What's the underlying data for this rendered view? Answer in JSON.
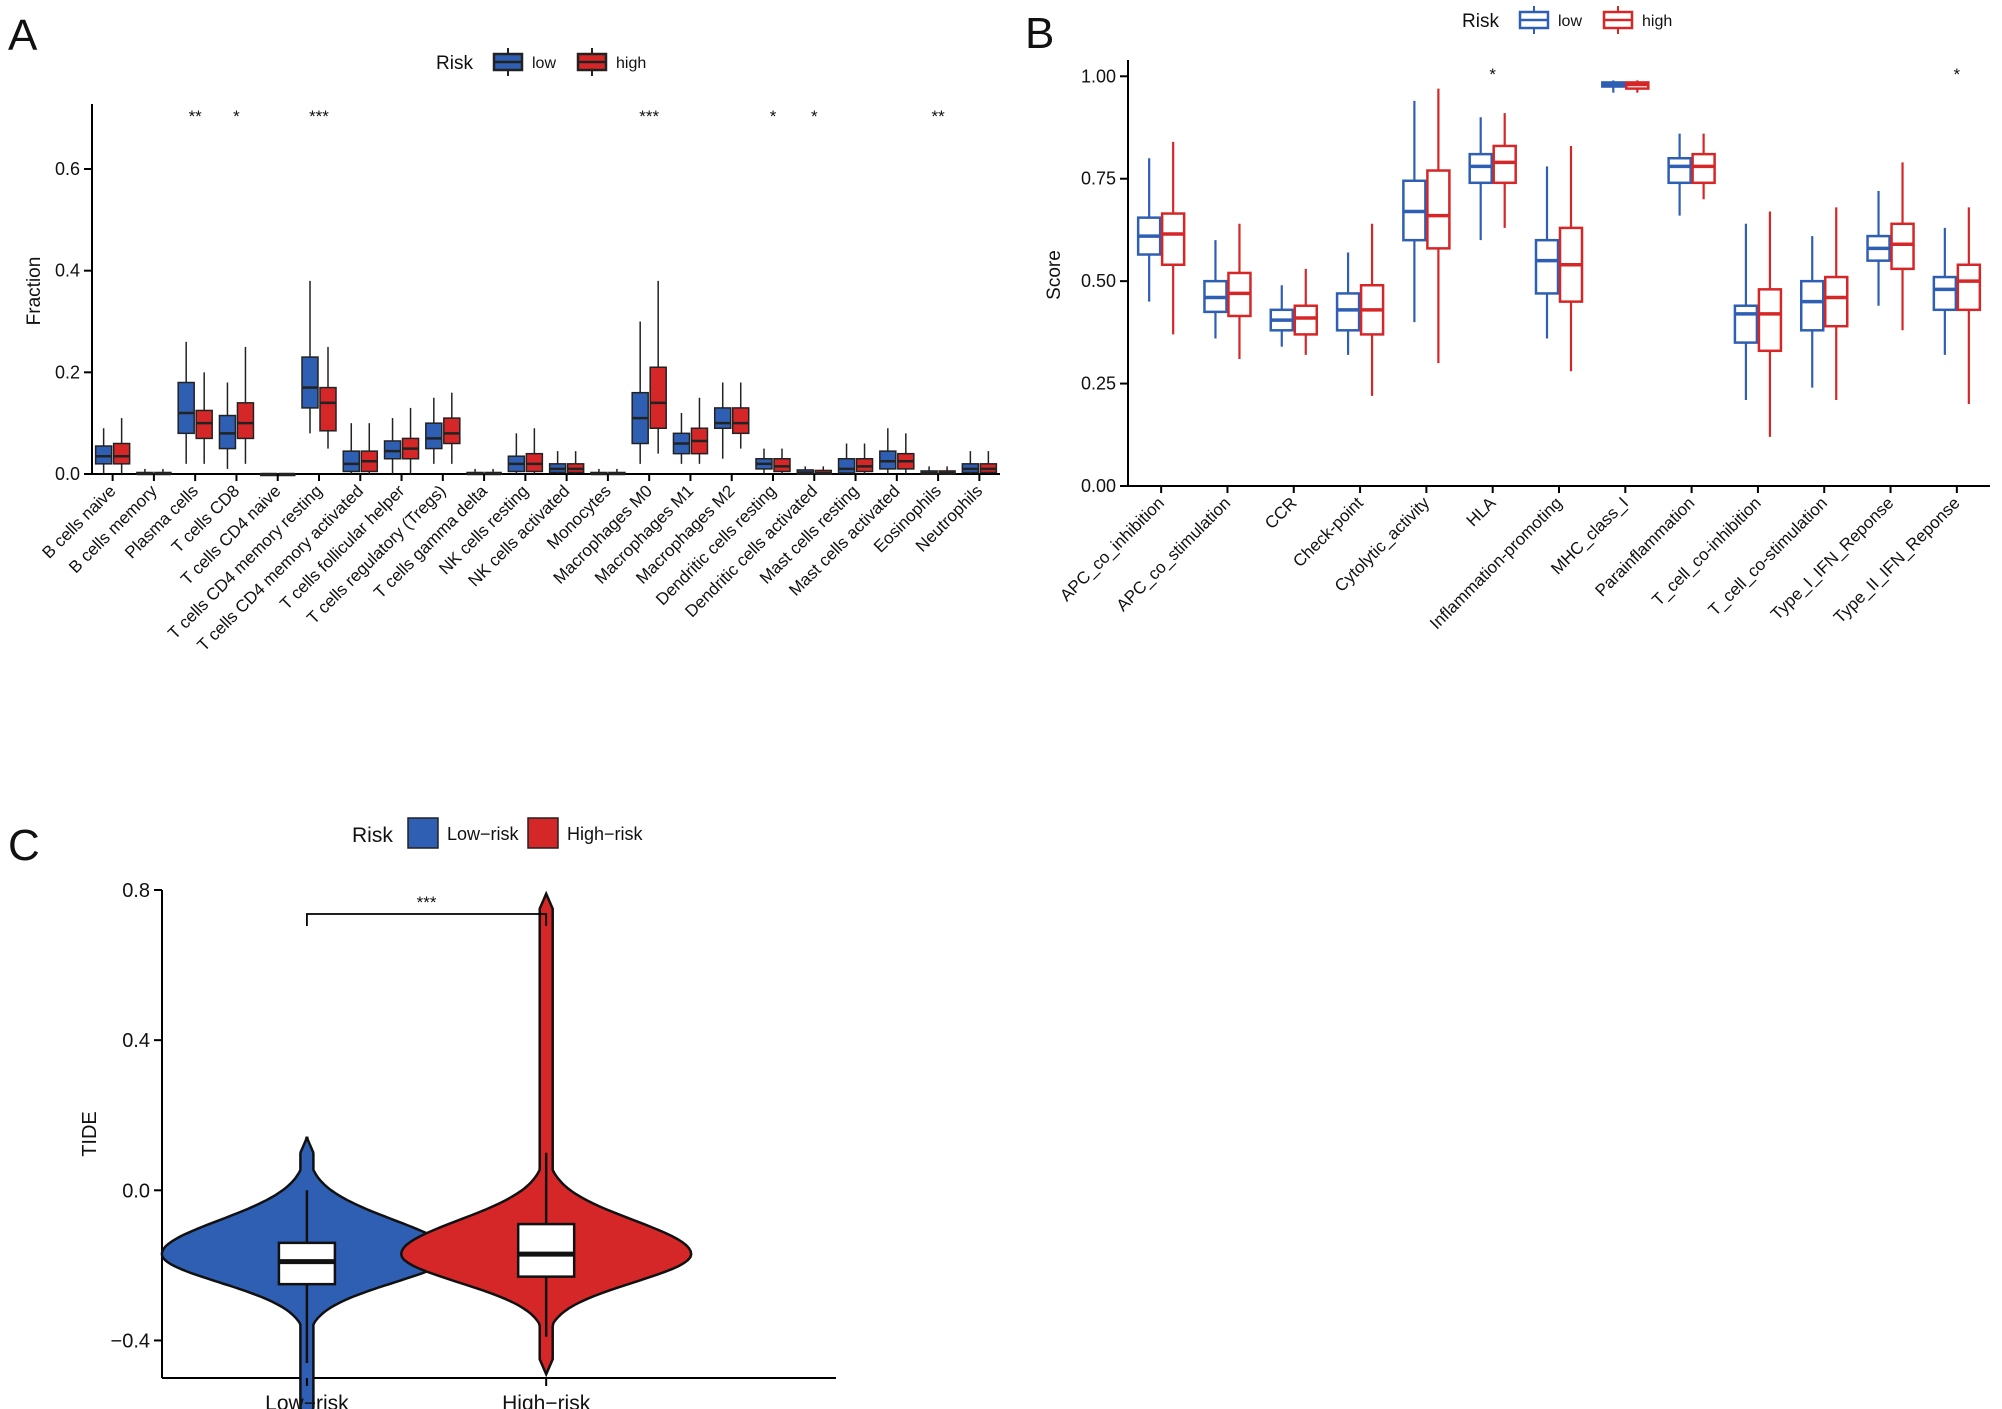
{
  "colors": {
    "low": "#2f5fb3",
    "high": "#d62728",
    "axis": "#000000",
    "outlier": "#000000"
  },
  "panel_labels": {
    "a": "A",
    "b": "B",
    "c": "C"
  },
  "chart_data": [
    {
      "panel": "A",
      "type": "box",
      "ylabel": "Fraction",
      "ylim": [
        0,
        0.72
      ],
      "yticks": [
        0,
        0.2,
        0.4,
        0.6
      ],
      "ytick_labels": [
        "0.0",
        "0.2",
        "0.4",
        "0.6"
      ],
      "legend": {
        "title": "Risk",
        "entries": [
          "low",
          "high"
        ],
        "position": "top"
      },
      "categories": [
        "B cells naive",
        "B cells memory",
        "Plasma cells",
        "T cells CD8",
        "T cells CD4 naive",
        "T cells CD4 memory resting",
        "T cells CD4 memory activated",
        "T cells follicular helper",
        "T cells regulatory (Tregs)",
        "T cells gamma delta",
        "NK cells resting",
        "NK cells activated",
        "Monocytes",
        "Macrophages M0",
        "Macrophages M1",
        "Macrophages M2",
        "Dendritic cells resting",
        "Dendritic cells activated",
        "Mast cells resting",
        "Mast cells activated",
        "Eosinophils",
        "Neutrophils"
      ],
      "significance": [
        "",
        "",
        "**",
        "*",
        "",
        "***",
        "",
        "",
        "",
        "",
        "",
        "",
        "",
        "***",
        "",
        "",
        "*",
        "*",
        "",
        "",
        "**",
        ""
      ],
      "series": [
        {
          "name": "low",
          "boxes": [
            [
              0,
              0.02,
              0.035,
              0.055,
              0.09
            ],
            [
              0,
              0,
              0,
              0.003,
              0.01
            ],
            [
              0.02,
              0.08,
              0.12,
              0.18,
              0.26
            ],
            [
              0.01,
              0.05,
              0.08,
              0.115,
              0.18
            ],
            [
              0,
              0,
              0,
              0,
              0
            ],
            [
              0.08,
              0.13,
              0.17,
              0.23,
              0.38
            ],
            [
              0,
              0.005,
              0.02,
              0.045,
              0.1
            ],
            [
              0,
              0.03,
              0.045,
              0.065,
              0.11
            ],
            [
              0.02,
              0.05,
              0.07,
              0.1,
              0.15
            ],
            [
              0,
              0,
              0,
              0.003,
              0.01
            ],
            [
              0,
              0.005,
              0.02,
              0.035,
              0.08
            ],
            [
              0,
              0.003,
              0.01,
              0.02,
              0.045
            ],
            [
              0,
              0,
              0,
              0.003,
              0.01
            ],
            [
              0.02,
              0.06,
              0.11,
              0.16,
              0.3
            ],
            [
              0.02,
              0.04,
              0.06,
              0.08,
              0.12
            ],
            [
              0.03,
              0.09,
              0.1,
              0.13,
              0.18
            ],
            [
              0,
              0.01,
              0.02,
              0.03,
              0.05
            ],
            [
              0,
              0,
              0.003,
              0.008,
              0.015
            ],
            [
              0,
              0.002,
              0.01,
              0.03,
              0.06
            ],
            [
              0,
              0.01,
              0.025,
              0.045,
              0.09
            ],
            [
              0,
              0,
              0.002,
              0.006,
              0.015
            ],
            [
              0,
              0.003,
              0.01,
              0.02,
              0.045
            ]
          ]
        },
        {
          "name": "high",
          "boxes": [
            [
              0,
              0.02,
              0.035,
              0.06,
              0.11
            ],
            [
              0,
              0,
              0,
              0.003,
              0.01
            ],
            [
              0.02,
              0.07,
              0.1,
              0.125,
              0.2
            ],
            [
              0.02,
              0.07,
              0.1,
              0.14,
              0.25
            ],
            [
              0,
              0,
              0,
              0,
              0
            ],
            [
              0.05,
              0.085,
              0.14,
              0.17,
              0.25
            ],
            [
              0,
              0.005,
              0.025,
              0.045,
              0.1
            ],
            [
              0,
              0.03,
              0.05,
              0.07,
              0.13
            ],
            [
              0.02,
              0.06,
              0.08,
              0.11,
              0.16
            ],
            [
              0,
              0,
              0,
              0.003,
              0.01
            ],
            [
              0,
              0.005,
              0.02,
              0.04,
              0.09
            ],
            [
              0,
              0.003,
              0.01,
              0.02,
              0.045
            ],
            [
              0,
              0,
              0,
              0.003,
              0.01
            ],
            [
              0.04,
              0.09,
              0.14,
              0.21,
              0.38
            ],
            [
              0.02,
              0.04,
              0.065,
              0.09,
              0.15
            ],
            [
              0.05,
              0.08,
              0.1,
              0.13,
              0.18
            ],
            [
              0,
              0.005,
              0.015,
              0.03,
              0.05
            ],
            [
              0,
              0,
              0.002,
              0.007,
              0.015
            ],
            [
              0,
              0.005,
              0.015,
              0.03,
              0.06
            ],
            [
              0,
              0.01,
              0.025,
              0.04,
              0.08
            ],
            [
              0,
              0,
              0.002,
              0.006,
              0.015
            ],
            [
              0,
              0.003,
              0.01,
              0.02,
              0.045
            ]
          ]
        }
      ]
    },
    {
      "panel": "B",
      "type": "box",
      "ylabel": "Score",
      "ylim": [
        0,
        1.03
      ],
      "yticks": [
        0,
        0.25,
        0.5,
        0.75,
        1.0
      ],
      "ytick_labels": [
        "0.00",
        "0.25",
        "0.50",
        "0.75",
        "1.00"
      ],
      "legend": {
        "title": "Risk",
        "entries": [
          "low",
          "high"
        ],
        "position": "top"
      },
      "categories": [
        "APC_co_inhibition",
        "APC_co_stimulation",
        "CCR",
        "Check-point",
        "Cytolytic_activity",
        "HLA",
        "Inflammation-promoting",
        "MHC_class_I",
        "Parainflammation",
        "T_cell_co-inhibition",
        "T_cell_co-stimulation",
        "Type_I_IFN_Reponse",
        "Type_II_IFN_Reponse"
      ],
      "significance": [
        "",
        "",
        "",
        "",
        "",
        "*",
        "",
        "",
        "",
        "",
        "",
        "",
        "*"
      ],
      "series": [
        {
          "name": "low",
          "boxes": [
            [
              0.45,
              0.565,
              0.61,
              0.655,
              0.8
            ],
            [
              0.36,
              0.425,
              0.46,
              0.5,
              0.6
            ],
            [
              0.34,
              0.38,
              0.405,
              0.43,
              0.49
            ],
            [
              0.32,
              0.38,
              0.43,
              0.47,
              0.57
            ],
            [
              0.4,
              0.6,
              0.67,
              0.745,
              0.94
            ],
            [
              0.6,
              0.74,
              0.78,
              0.81,
              0.9
            ],
            [
              0.36,
              0.47,
              0.55,
              0.6,
              0.78
            ],
            [
              0.96,
              0.975,
              0.98,
              0.985,
              0.99
            ],
            [
              0.66,
              0.74,
              0.78,
              0.8,
              0.86
            ],
            [
              0.21,
              0.35,
              0.42,
              0.44,
              0.64
            ],
            [
              0.24,
              0.38,
              0.45,
              0.5,
              0.61
            ],
            [
              0.44,
              0.55,
              0.58,
              0.61,
              0.72
            ],
            [
              0.32,
              0.43,
              0.48,
              0.51,
              0.63
            ]
          ]
        },
        {
          "name": "high",
          "boxes": [
            [
              0.37,
              0.54,
              0.615,
              0.665,
              0.84
            ],
            [
              0.31,
              0.415,
              0.47,
              0.52,
              0.64
            ],
            [
              0.32,
              0.37,
              0.41,
              0.44,
              0.53
            ],
            [
              0.22,
              0.37,
              0.43,
              0.49,
              0.64
            ],
            [
              0.3,
              0.58,
              0.66,
              0.77,
              0.97
            ],
            [
              0.63,
              0.74,
              0.79,
              0.83,
              0.91
            ],
            [
              0.28,
              0.45,
              0.54,
              0.63,
              0.83
            ],
            [
              0.96,
              0.97,
              0.98,
              0.985,
              0.99
            ],
            [
              0.7,
              0.74,
              0.78,
              0.81,
              0.86
            ],
            [
              0.12,
              0.33,
              0.42,
              0.48,
              0.67
            ],
            [
              0.21,
              0.39,
              0.46,
              0.51,
              0.68
            ],
            [
              0.38,
              0.53,
              0.59,
              0.64,
              0.79
            ],
            [
              0.2,
              0.43,
              0.5,
              0.54,
              0.68
            ]
          ]
        }
      ]
    },
    {
      "panel": "C",
      "type": "violin",
      "ylabel": "TIDE",
      "ylim": [
        -0.5,
        0.8
      ],
      "yticks": [
        -0.4,
        0.0,
        0.4,
        0.8
      ],
      "ytick_labels": [
        "−0.4",
        "0.0",
        "0.4",
        "0.8"
      ],
      "legend": {
        "title": "Risk",
        "entries": [
          "Low−risk",
          "High−risk"
        ],
        "position": "top"
      },
      "categories": [
        "Low−risk",
        "High−risk"
      ],
      "significance": "***",
      "violins": [
        {
          "name": "Low−risk",
          "min": -0.62,
          "max": 0.14,
          "box": [
            -0.46,
            -0.25,
            -0.19,
            -0.14,
            0.0
          ],
          "mode": -0.17
        },
        {
          "name": "High−risk",
          "min": -0.49,
          "max": 0.79,
          "box": [
            -0.39,
            -0.23,
            -0.17,
            -0.09,
            0.1
          ],
          "mode": -0.17
        }
      ]
    }
  ]
}
